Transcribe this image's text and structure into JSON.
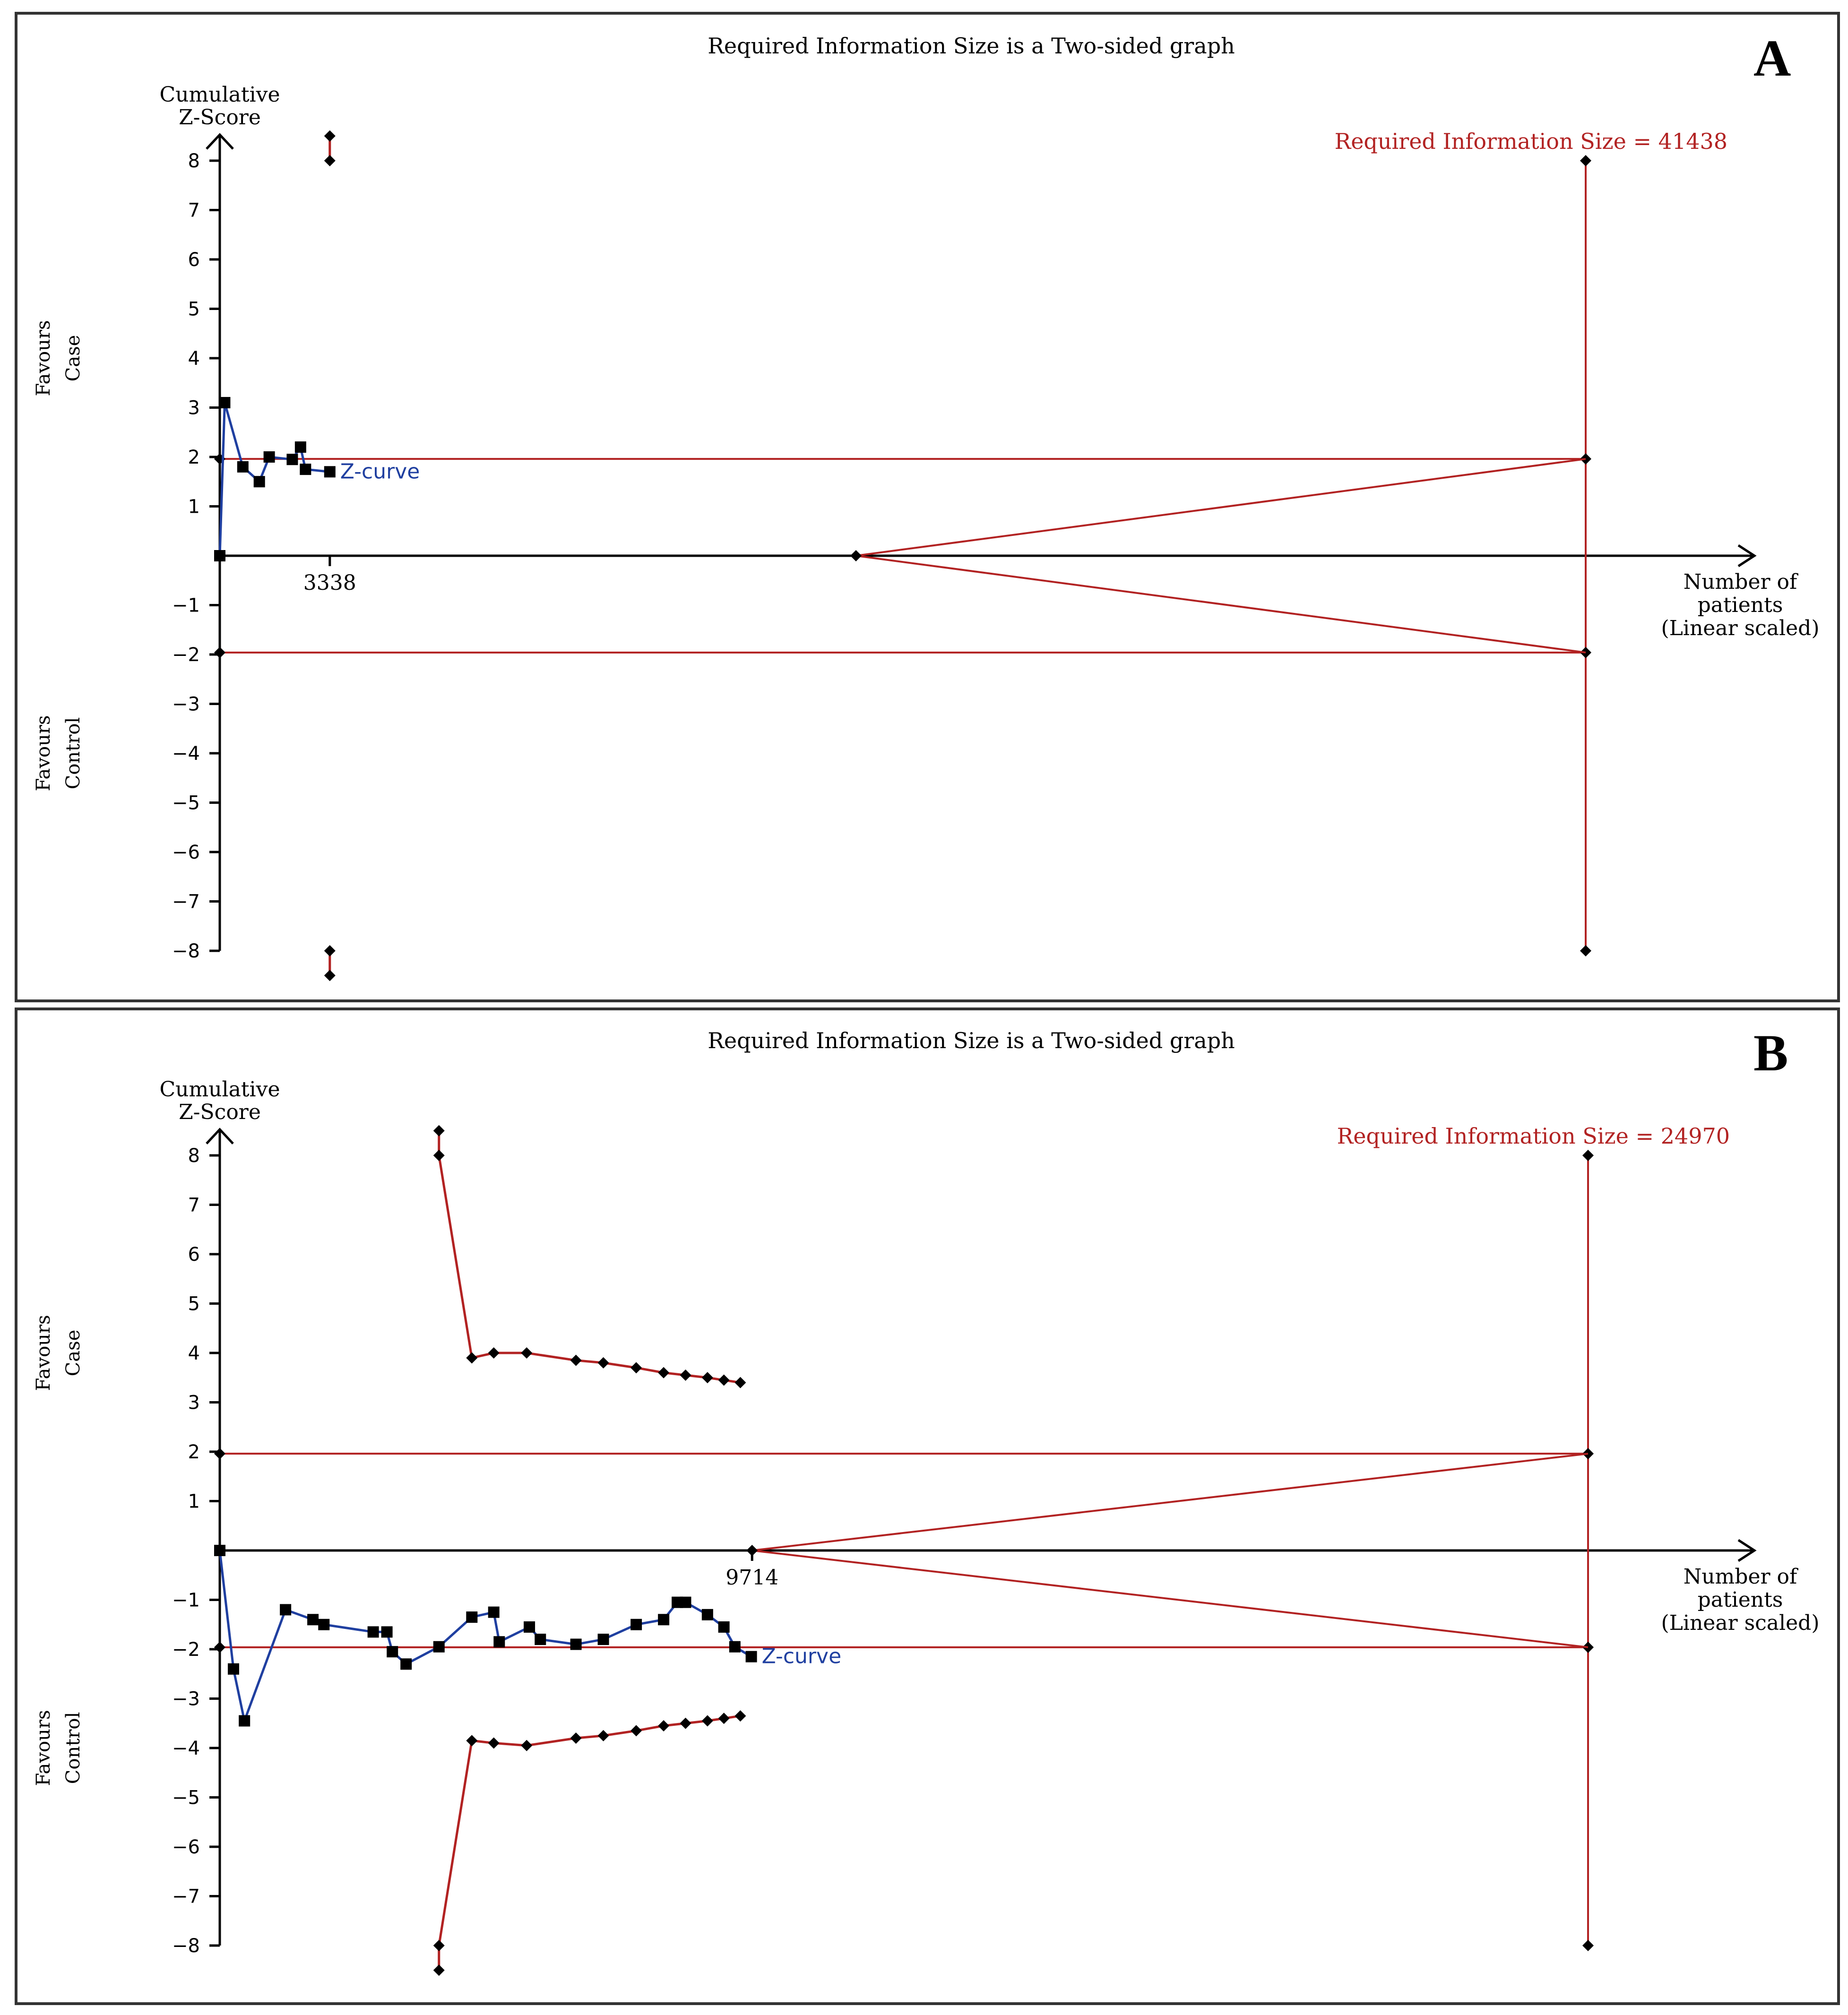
{
  "colors": {
    "boundary": "#b22222",
    "zcurve": "#1f3fa0",
    "axis": "#000000",
    "marker": "#000000"
  },
  "chart_data": [
    {
      "type": "line",
      "panel_label": "A",
      "title": "Required Information Size is a Two-sided graph",
      "ylabel_line1": "Cumulative",
      "ylabel_line2": "Z-Score",
      "xlabel_line1": "Number of",
      "xlabel_line2": "patients",
      "xlabel_line3": "(Linear scaled)",
      "favours_top_line1": "Favours",
      "favours_top_line2": "Case",
      "favours_bottom_line1": "Favours",
      "favours_bottom_line2": "Control",
      "ylim": [
        -8,
        8
      ],
      "xlim": [
        0,
        41438
      ],
      "yticks": [
        8,
        7,
        6,
        5,
        4,
        3,
        2,
        1,
        -1,
        -2,
        -3,
        -4,
        -5,
        -6,
        -7,
        -8
      ],
      "ytick_labels": [
        "8",
        "7",
        "6",
        "5",
        "4",
        "3",
        "2",
        "1",
        "−1",
        "−2",
        "−3",
        "−4",
        "−5",
        "−6",
        "−7",
        "−8"
      ],
      "x_tick_value": 3338,
      "x_tick_label": "3338",
      "ris_value": 41438,
      "ris_label": "Required Information Size = 41438",
      "zcurve_label": "Z-curve",
      "conventional_boundary": [
        1.96,
        -1.96
      ],
      "futility_apex_x": 19300,
      "z_curve": {
        "x": [
          0,
          150,
          700,
          1200,
          1500,
          2200,
          2450,
          2600,
          3338
        ],
        "y": [
          0,
          3.1,
          1.8,
          1.5,
          2.0,
          1.95,
          2.2,
          1.75,
          1.7
        ]
      },
      "upper_boundary": {
        "x": [
          3338,
          3338
        ],
        "y": [
          8.5,
          8
        ]
      },
      "lower_boundary": {
        "x": [
          3338,
          3338
        ],
        "y": [
          -8,
          -8.5
        ]
      }
    },
    {
      "type": "line",
      "panel_label": "B",
      "title": "Required Information Size is a Two-sided graph",
      "ylabel_line1": "Cumulative",
      "ylabel_line2": "Z-Score",
      "xlabel_line1": "Number of",
      "xlabel_line2": "patients",
      "xlabel_line3": "(Linear scaled)",
      "favours_top_line1": "Favours",
      "favours_top_line2": "Case",
      "favours_bottom_line1": "Favours",
      "favours_bottom_line2": "Control",
      "ylim": [
        -8,
        8
      ],
      "xlim": [
        0,
        24970
      ],
      "yticks": [
        8,
        7,
        6,
        5,
        4,
        3,
        2,
        1,
        -1,
        -2,
        -3,
        -4,
        -5,
        -6,
        -7,
        -8
      ],
      "ytick_labels": [
        "8",
        "7",
        "6",
        "5",
        "4",
        "3",
        "2",
        "1",
        "−1",
        "−2",
        "−3",
        "−4",
        "−5",
        "−6",
        "−7",
        "−8"
      ],
      "x_tick_value": 9714,
      "x_tick_label": "9714",
      "ris_value": 24970,
      "ris_label": "Required Information Size = 24970",
      "zcurve_label": "Z-curve",
      "conventional_boundary": [
        1.96,
        -1.96
      ],
      "futility_apex_x": 9714,
      "z_curve": {
        "x": [
          0,
          250,
          450,
          1200,
          1700,
          1900,
          2800,
          3050,
          3150,
          3400,
          4000,
          4600,
          5000,
          5100,
          5650,
          5850,
          6500,
          7000,
          7600,
          8100,
          8350,
          8500,
          8900,
          9200,
          9400,
          9700
        ],
        "y": [
          0,
          -2.4,
          -3.45,
          -1.2,
          -1.4,
          -1.5,
          -1.65,
          -1.65,
          -2.05,
          -2.3,
          -1.95,
          -1.35,
          -1.25,
          -1.85,
          -1.55,
          -1.8,
          -1.9,
          -1.8,
          -1.5,
          -1.4,
          -1.05,
          -1.05,
          -1.3,
          -1.55,
          -1.95,
          -2.15
        ]
      },
      "upper_boundary": {
        "x": [
          4000,
          4000,
          4600,
          5000,
          5600,
          6500,
          7000,
          7600,
          8100,
          8500,
          8900,
          9200,
          9500
        ],
        "y": [
          8.5,
          8,
          3.9,
          4.0,
          4.0,
          3.85,
          3.8,
          3.7,
          3.6,
          3.55,
          3.5,
          3.45,
          3.4
        ]
      },
      "lower_boundary": {
        "x": [
          4000,
          4000,
          4600,
          5000,
          5600,
          6500,
          7000,
          7600,
          8100,
          8500,
          8900,
          9200,
          9500
        ],
        "y": [
          -8.5,
          -8,
          -3.85,
          -3.9,
          -3.95,
          -3.8,
          -3.75,
          -3.65,
          -3.55,
          -3.5,
          -3.45,
          -3.4,
          -3.35
        ]
      }
    }
  ]
}
